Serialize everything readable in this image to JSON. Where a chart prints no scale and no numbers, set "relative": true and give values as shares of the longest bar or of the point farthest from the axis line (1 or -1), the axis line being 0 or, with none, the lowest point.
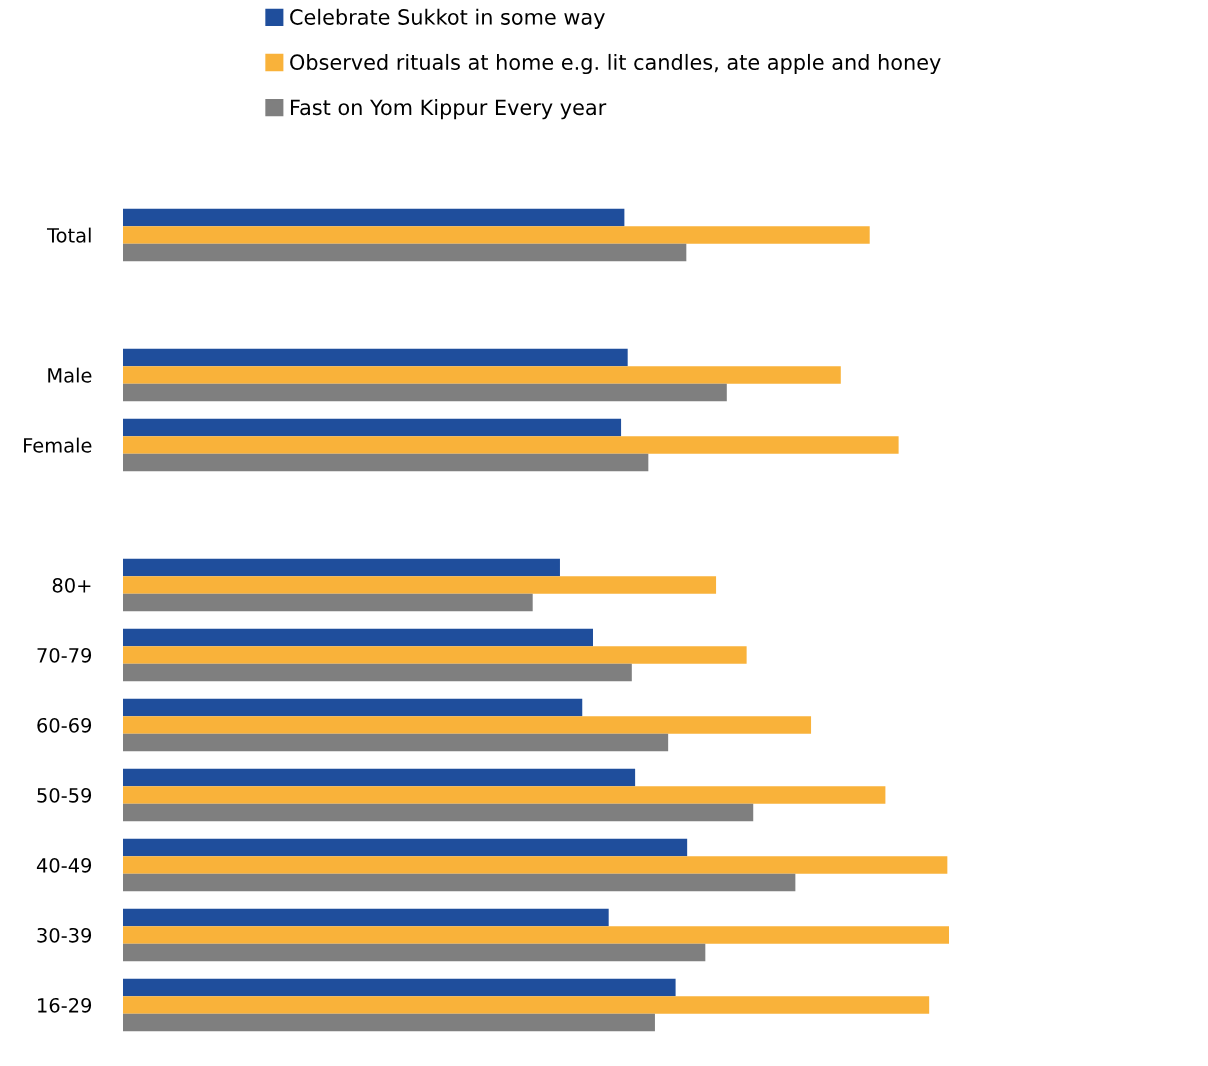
{
  "chart_data": {
    "type": "bar",
    "orientation": "horizontal",
    "relative": true,
    "legend": "top",
    "categories": [
      "Total",
      null,
      "Male",
      "Female",
      null,
      "80+",
      "70-79",
      "60-69",
      "50-59",
      "40-49",
      "30-39",
      "16-29"
    ],
    "series": [
      {
        "name": "Celebrate Sukkot in some way",
        "color": "#1f4e9c",
        "values": [
          0.607,
          null,
          0.611,
          0.603,
          null,
          0.529,
          0.569,
          0.556,
          0.62,
          0.683,
          0.588,
          0.669
        ]
      },
      {
        "name": "Observed rituals at home e.g. lit candles, ate apple and honey",
        "color": "#f9b23a",
        "values": [
          0.904,
          null,
          0.869,
          0.939,
          null,
          0.718,
          0.755,
          0.833,
          0.923,
          0.998,
          1.0,
          0.976
        ]
      },
      {
        "name": "Fast on Yom Kippur Every year",
        "color": "#7f7f7f",
        "values": [
          0.682,
          null,
          0.731,
          0.636,
          null,
          0.496,
          0.616,
          0.66,
          0.763,
          0.814,
          0.705,
          0.644
        ]
      }
    ]
  }
}
